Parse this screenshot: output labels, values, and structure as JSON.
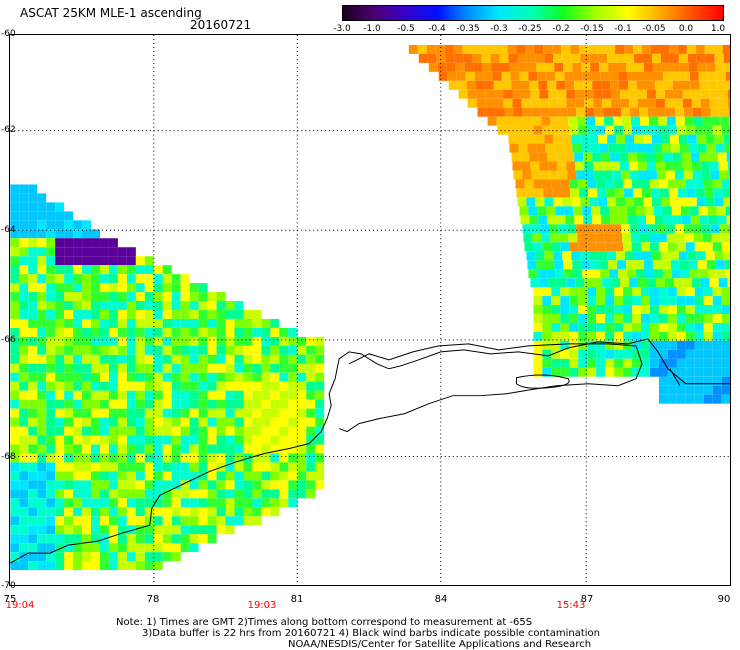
{
  "header": {
    "title": "ASCAT 25KM MLE-1 ascending",
    "date": "20160721"
  },
  "colorbar": {
    "labels": [
      "-3.0",
      "-1.0",
      "-0.5",
      "-0.4",
      "-0.35",
      "-0.3",
      "-0.25",
      "-0.2",
      "-0.15",
      "-0.1",
      "-0.05",
      "0.0",
      "1.0"
    ],
    "colors": [
      "#2a0033",
      "#5a007f",
      "#3a00d8",
      "#0010ff",
      "#0090ff",
      "#00e8ff",
      "#00ffb0",
      "#10ff20",
      "#9cff00",
      "#ffff00",
      "#ffa000",
      "#ff4000",
      "#ff0000"
    ]
  },
  "axes": {
    "lat_labels": [
      "-60",
      "-62",
      "-64",
      "-66",
      "-68",
      "-70"
    ],
    "lon_labels": [
      "75",
      "78",
      "81",
      "84",
      "87",
      "90"
    ],
    "time_labels": [
      "19:04",
      "19:03",
      "15:43"
    ]
  },
  "notes": {
    "line1": "Note: 1) Times are GMT 2)Times along bottom correspond to measurement at -65S",
    "line2": "3)Data buffer is 22 hrs from 20160721 4) Black wind barbs indicate possible contamination",
    "line3": "NOAA/NESDIS/Center for Satellite Applications and Research"
  }
}
